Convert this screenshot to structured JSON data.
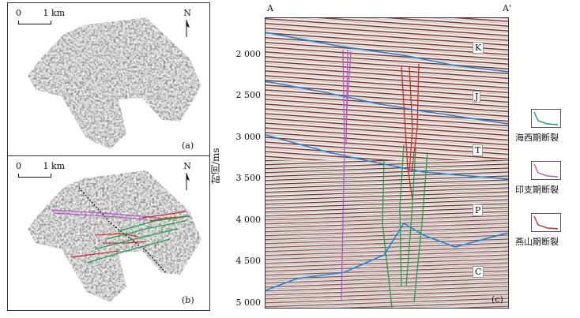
{
  "panel_a": {
    "tag": "(a)",
    "scale_start": "0",
    "scale_end": "1 km",
    "north": "N"
  },
  "panel_b": {
    "tag": "(b)",
    "scale_start": "0",
    "scale_end": "1 km",
    "north": "N"
  },
  "panel_c": {
    "tag": "(c)",
    "label_left": "A",
    "label_right": "A'",
    "ylabel": "时间/ms",
    "yticks": [
      "2 000",
      "2 500",
      "3 000",
      "3 500",
      "4 000",
      "4 500",
      "5 000"
    ],
    "horizons": [
      "K",
      "J",
      "T",
      "P",
      "C"
    ]
  },
  "legend": [
    {
      "label": "海西期断裂",
      "color": "#1aa34a"
    },
    {
      "label": "印支期断裂",
      "color": "#b05bc7"
    },
    {
      "label": "燕山期断裂",
      "color": "#d42a2a"
    }
  ]
}
